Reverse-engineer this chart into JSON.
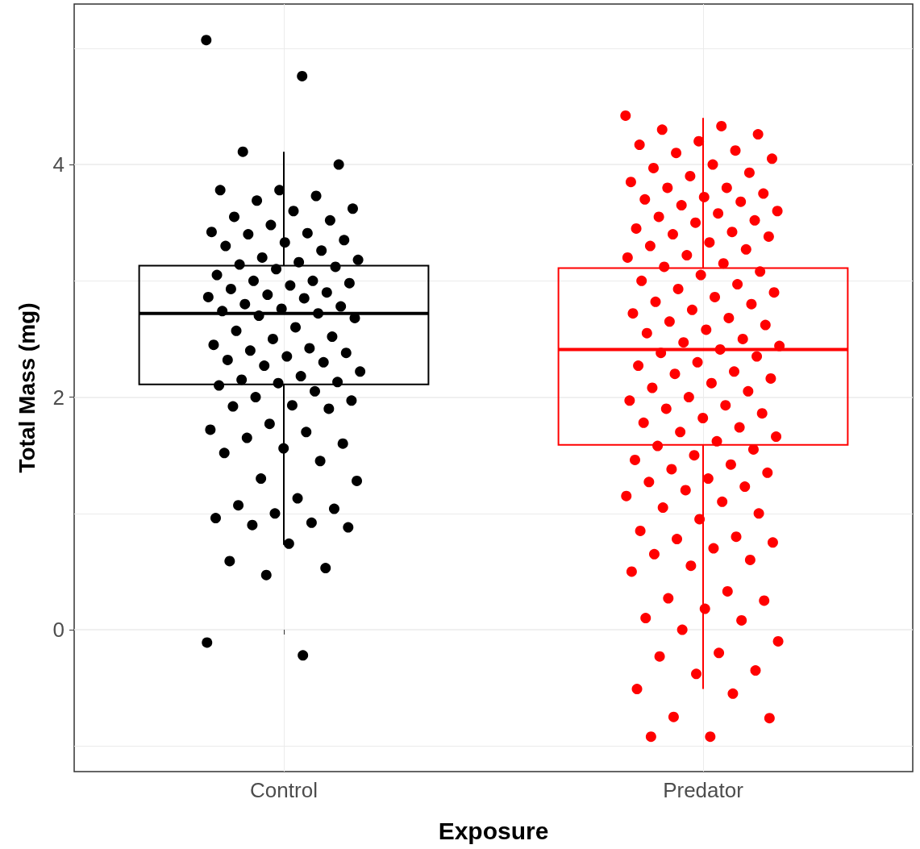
{
  "chart_data": {
    "type": "box",
    "xlabel": "Exposure",
    "ylabel": "Total Mass (mg)",
    "categories": [
      "Control",
      "Predator"
    ],
    "boxes": [
      {
        "low": 0.73,
        "q1": 2.11,
        "median": 2.72,
        "q3": 3.13,
        "high": 4.11
      },
      {
        "low": -0.51,
        "q1": 1.59,
        "median": 2.41,
        "q3": 3.11,
        "high": 4.4
      }
    ],
    "colors": [
      "#000000",
      "#ff0000"
    ],
    "series": [
      {
        "type": "scatter",
        "color": "#000000",
        "x": [
          "Control",
          "Control",
          "Control",
          "Control",
          "Control",
          "Control",
          "Control",
          "Control",
          "Control",
          "Control",
          "Control",
          "Control",
          "Control",
          "Control",
          "Control",
          "Control",
          "Control",
          "Control",
          "Control",
          "Control",
          "Control",
          "Control",
          "Control",
          "Control",
          "Control",
          "Control",
          "Control",
          "Control",
          "Control",
          "Control",
          "Control",
          "Control",
          "Control",
          "Control",
          "Control",
          "Control",
          "Control",
          "Control",
          "Control",
          "Control",
          "Control",
          "Control",
          "Control",
          "Control",
          "Control",
          "Control",
          "Control",
          "Control",
          "Control",
          "Control",
          "Control",
          "Control",
          "Control",
          "Control",
          "Control",
          "Control",
          "Control",
          "Control",
          "Control",
          "Control",
          "Control",
          "Control",
          "Control",
          "Control",
          "Control",
          "Control",
          "Control",
          "Control",
          "Control",
          "Control",
          "Control",
          "Control",
          "Control",
          "Control",
          "Control",
          "Control",
          "Control",
          "Control",
          "Control",
          "Control",
          "Control",
          "Control",
          "Control",
          "Control",
          "Control",
          "Control",
          "Control",
          "Control",
          "Control",
          "Control",
          "Control"
        ],
        "values": [
          5.07,
          4.76,
          4.11,
          4.0,
          3.78,
          3.78,
          3.73,
          3.69,
          3.62,
          3.6,
          3.55,
          3.52,
          3.48,
          3.42,
          3.41,
          3.4,
          3.35,
          3.33,
          3.3,
          3.26,
          3.2,
          3.18,
          3.16,
          3.14,
          3.12,
          3.1,
          3.05,
          3.0,
          3.0,
          2.98,
          2.96,
          2.93,
          2.9,
          2.88,
          2.86,
          2.85,
          2.8,
          2.78,
          2.76,
          2.74,
          2.72,
          2.7,
          2.68,
          2.6,
          2.57,
          2.52,
          2.5,
          2.45,
          2.42,
          2.4,
          2.38,
          2.35,
          2.32,
          2.3,
          2.27,
          2.22,
          2.18,
          2.15,
          2.13,
          2.12,
          2.1,
          2.05,
          2.0,
          1.97,
          1.93,
          1.92,
          1.9,
          1.77,
          1.72,
          1.7,
          1.65,
          1.6,
          1.56,
          1.52,
          1.45,
          1.3,
          1.28,
          1.13,
          1.07,
          1.04,
          1.0,
          0.96,
          0.92,
          0.9,
          0.88,
          0.74,
          0.59,
          0.53,
          0.47,
          -0.11,
          -0.22
        ]
      },
      {
        "type": "scatter",
        "color": "#ff0000",
        "x": [
          "Predator",
          "Predator",
          "Predator",
          "Predator",
          "Predator",
          "Predator",
          "Predator",
          "Predator",
          "Predator",
          "Predator",
          "Predator",
          "Predator",
          "Predator",
          "Predator",
          "Predator",
          "Predator",
          "Predator",
          "Predator",
          "Predator",
          "Predator",
          "Predator",
          "Predator",
          "Predator",
          "Predator",
          "Predator",
          "Predator",
          "Predator",
          "Predator",
          "Predator",
          "Predator",
          "Predator",
          "Predator",
          "Predator",
          "Predator",
          "Predator",
          "Predator",
          "Predator",
          "Predator",
          "Predator",
          "Predator",
          "Predator",
          "Predator",
          "Predator",
          "Predator",
          "Predator",
          "Predator",
          "Predator",
          "Predator",
          "Predator",
          "Predator",
          "Predator",
          "Predator",
          "Predator",
          "Predator",
          "Predator",
          "Predator",
          "Predator",
          "Predator",
          "Predator",
          "Predator",
          "Predator",
          "Predator",
          "Predator",
          "Predator",
          "Predator",
          "Predator",
          "Predator",
          "Predator",
          "Predator",
          "Predator",
          "Predator",
          "Predator",
          "Predator",
          "Predator",
          "Predator",
          "Predator",
          "Predator",
          "Predator",
          "Predator",
          "Predator",
          "Predator",
          "Predator",
          "Predator",
          "Predator",
          "Predator",
          "Predator",
          "Predator",
          "Predator",
          "Predator",
          "Predator",
          "Predator",
          "Predator",
          "Predator",
          "Predator",
          "Predator",
          "Predator",
          "Predator",
          "Predator",
          "Predator",
          "Predator",
          "Predator",
          "Predator",
          "Predator",
          "Predator",
          "Predator",
          "Predator",
          "Predator",
          "Predator",
          "Predator",
          "Predator",
          "Predator",
          "Predator",
          "Predator",
          "Predator",
          "Predator",
          "Predator",
          "Predator",
          "Predator",
          "Predator",
          "Predator",
          "Predator"
        ],
        "values": [
          4.42,
          4.33,
          4.3,
          4.26,
          4.2,
          4.17,
          4.12,
          4.1,
          4.05,
          4.0,
          3.97,
          3.93,
          3.9,
          3.85,
          3.8,
          3.8,
          3.75,
          3.72,
          3.7,
          3.68,
          3.65,
          3.6,
          3.58,
          3.55,
          3.52,
          3.5,
          3.45,
          3.42,
          3.4,
          3.38,
          3.33,
          3.3,
          3.27,
          3.22,
          3.2,
          3.15,
          3.12,
          3.08,
          3.05,
          3.0,
          2.97,
          2.93,
          2.9,
          2.86,
          2.82,
          2.8,
          2.75,
          2.72,
          2.68,
          2.65,
          2.62,
          2.58,
          2.55,
          2.5,
          2.47,
          2.44,
          2.41,
          2.38,
          2.35,
          2.3,
          2.27,
          2.22,
          2.2,
          2.16,
          2.12,
          2.08,
          2.05,
          2.0,
          1.97,
          1.93,
          1.9,
          1.86,
          1.82,
          1.78,
          1.74,
          1.7,
          1.66,
          1.62,
          1.58,
          1.55,
          1.5,
          1.46,
          1.42,
          1.38,
          1.35,
          1.3,
          1.27,
          1.23,
          1.2,
          1.15,
          1.1,
          1.05,
          1.0,
          0.95,
          0.85,
          0.8,
          0.78,
          0.75,
          0.7,
          0.65,
          0.6,
          0.55,
          0.5,
          0.33,
          0.27,
          0.25,
          0.18,
          0.1,
          0.08,
          0.0,
          -0.1,
          -0.2,
          -0.23,
          -0.35,
          -0.38,
          -0.51,
          -0.55,
          -0.75,
          -0.76,
          -0.92,
          -0.92
        ]
      }
    ],
    "ylim": [
      -1.22,
      5.38
    ],
    "yticks": [
      {
        "value": -1,
        "label": null
      },
      0,
      {
        "value": 1,
        "label": null
      },
      2,
      {
        "value": 3,
        "label": null
      },
      4,
      {
        "value": 5,
        "label": null
      }
    ],
    "grid": true,
    "marker": "circle"
  }
}
